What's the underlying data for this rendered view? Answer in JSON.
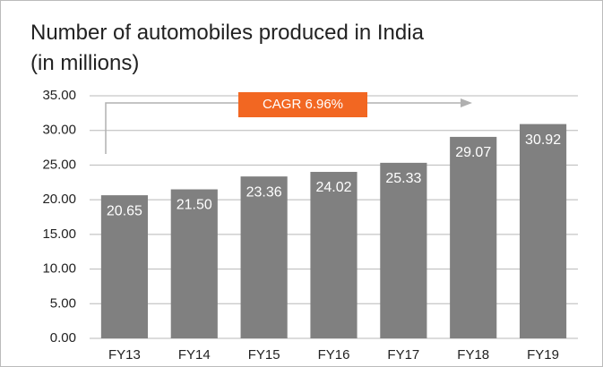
{
  "chart_data": {
    "type": "bar",
    "title": "Number of automobiles produced in India",
    "subtitle": "(in millions)",
    "annotation": "CAGR 6.96%",
    "categories": [
      "FY13",
      "FY14",
      "FY15",
      "FY16",
      "FY17",
      "FY18",
      "FY19"
    ],
    "values": [
      20.65,
      21.5,
      23.36,
      24.02,
      25.33,
      29.07,
      30.92
    ],
    "value_labels": [
      "20.65",
      "21.50",
      "23.36",
      "24.02",
      "25.33",
      "29.07",
      "30.92"
    ],
    "color": "#808080",
    "ylim": [
      0,
      35
    ],
    "yticks": [
      {
        "value": 0,
        "label": "0.00"
      },
      {
        "value": 5,
        "label": "5.00"
      },
      {
        "value": 10,
        "label": "10.00"
      },
      {
        "value": 15,
        "label": "15.00"
      },
      {
        "value": 20,
        "label": "20.00"
      },
      {
        "value": 25,
        "label": "25.00"
      },
      {
        "value": 30,
        "label": "30.00"
      },
      {
        "value": 35,
        "label": "35.00"
      }
    ],
    "grid": true
  }
}
